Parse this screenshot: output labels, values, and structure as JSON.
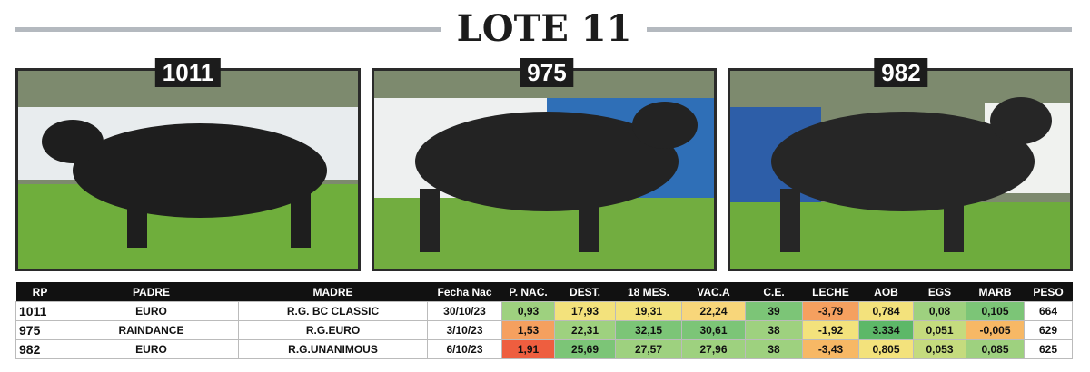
{
  "header": {
    "title": "LOTE 11"
  },
  "photos": [
    {
      "label": "1011"
    },
    {
      "label": "975"
    },
    {
      "label": "982"
    }
  ],
  "table": {
    "columns": [
      "RP",
      "PADRE",
      "MADRE",
      "Fecha Nac",
      "P. NAC.",
      "DEST.",
      "18 MES.",
      "VAC.A",
      "C.E.",
      "LECHE",
      "AOB",
      "EGS",
      "MARB",
      "PESO"
    ],
    "rows": [
      [
        "1011",
        "EURO",
        "R.G. BC CLASSIC",
        "30/10/23",
        "0,93",
        "17,93",
        "19,31",
        "22,24",
        "39",
        "-3,79",
        "0,784",
        "0,08",
        "0,105",
        "664"
      ],
      [
        "975",
        "RAINDANCE",
        "R.G.EURO",
        "3/10/23",
        "1,53",
        "22,31",
        "32,15",
        "30,61",
        "38",
        "-1,92",
        "3.334",
        "0,051",
        "-0,005",
        "629"
      ],
      [
        "982",
        "EURO",
        "R.G.UNANIMOUS",
        "6/10/23",
        "1,91",
        "25,69",
        "27,57",
        "27,96",
        "38",
        "-3,43",
        "0,805",
        "0,053",
        "0,085",
        "625"
      ]
    ]
  }
}
